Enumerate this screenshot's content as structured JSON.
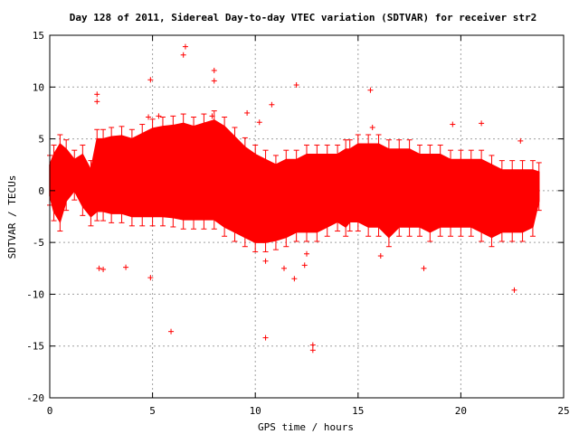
{
  "chart_data": {
    "type": "scatter",
    "title": "Day 128 of 2011, Sidereal Day-to-day VTEC variation (SDTVAR) for receiver str2",
    "xlabel": "GPS time / hours",
    "ylabel": "SDTVAR / TECUs",
    "xlim": [
      0,
      25
    ],
    "ylim": [
      -20,
      15
    ],
    "xticks": [
      0,
      5,
      10,
      15,
      20,
      25
    ],
    "yticks": [
      -20,
      -15,
      -10,
      -5,
      0,
      5,
      10,
      15
    ],
    "grid": true,
    "marker": "plus-with-errorbars",
    "color": "#ff0000",
    "band": [
      [
        0.0,
        -0.5,
        2.5
      ],
      [
        0.2,
        -2.0,
        3.5
      ],
      [
        0.5,
        -3.0,
        4.5
      ],
      [
        0.8,
        -1.0,
        4.0
      ],
      [
        1.2,
        0.0,
        3.0
      ],
      [
        1.6,
        -1.5,
        3.5
      ],
      [
        2.0,
        -2.5,
        2.0
      ],
      [
        2.3,
        -2.0,
        5.0
      ],
      [
        2.6,
        -2.0,
        5.0
      ],
      [
        3.0,
        -2.2,
        5.2
      ],
      [
        3.5,
        -2.2,
        5.3
      ],
      [
        4.0,
        -2.5,
        5.0
      ],
      [
        4.5,
        -2.5,
        5.5
      ],
      [
        5.0,
        -2.5,
        6.0
      ],
      [
        5.5,
        -2.5,
        6.2
      ],
      [
        6.0,
        -2.6,
        6.3
      ],
      [
        6.5,
        -2.8,
        6.5
      ],
      [
        7.0,
        -2.8,
        6.2
      ],
      [
        7.5,
        -2.8,
        6.5
      ],
      [
        8.0,
        -2.8,
        6.8
      ],
      [
        8.5,
        -3.5,
        6.2
      ],
      [
        9.0,
        -4.0,
        5.2
      ],
      [
        9.5,
        -4.5,
        4.2
      ],
      [
        10.0,
        -5.0,
        3.5
      ],
      [
        10.5,
        -5.0,
        3.0
      ],
      [
        11.0,
        -4.8,
        2.5
      ],
      [
        11.5,
        -4.5,
        3.0
      ],
      [
        12.0,
        -4.0,
        3.0
      ],
      [
        12.5,
        -4.0,
        3.5
      ],
      [
        13.0,
        -4.0,
        3.5
      ],
      [
        13.5,
        -3.5,
        3.5
      ],
      [
        14.0,
        -3.0,
        3.5
      ],
      [
        14.4,
        -3.5,
        4.0
      ],
      [
        14.6,
        -3.0,
        4.0
      ],
      [
        15.0,
        -3.0,
        4.5
      ],
      [
        15.5,
        -3.5,
        4.5
      ],
      [
        16.0,
        -3.5,
        4.5
      ],
      [
        16.5,
        -4.5,
        4.0
      ],
      [
        17.0,
        -3.5,
        4.0
      ],
      [
        17.5,
        -3.5,
        4.0
      ],
      [
        18.0,
        -3.5,
        3.5
      ],
      [
        18.5,
        -4.0,
        3.5
      ],
      [
        19.0,
        -3.5,
        3.5
      ],
      [
        19.5,
        -3.5,
        3.0
      ],
      [
        20.0,
        -3.5,
        3.0
      ],
      [
        20.5,
        -3.5,
        3.0
      ],
      [
        21.0,
        -4.0,
        3.0
      ],
      [
        21.5,
        -4.5,
        2.5
      ],
      [
        22.0,
        -4.0,
        2.0
      ],
      [
        22.5,
        -4.0,
        2.0
      ],
      [
        23.0,
        -4.0,
        2.0
      ],
      [
        23.5,
        -3.5,
        2.0
      ],
      [
        23.8,
        -1.0,
        1.8
      ]
    ],
    "outliers": [
      [
        6.6,
        13.9
      ],
      [
        6.5,
        13.1
      ],
      [
        8.0,
        11.6
      ],
      [
        8.0,
        10.6
      ],
      [
        4.9,
        10.7
      ],
      [
        12.0,
        10.2
      ],
      [
        15.6,
        9.7
      ],
      [
        2.3,
        9.3
      ],
      [
        2.3,
        8.6
      ],
      [
        10.8,
        8.3
      ],
      [
        9.6,
        7.5
      ],
      [
        7.9,
        7.2
      ],
      [
        5.3,
        7.2
      ],
      [
        4.8,
        7.1
      ],
      [
        10.2,
        6.6
      ],
      [
        19.6,
        6.4
      ],
      [
        21.0,
        6.5
      ],
      [
        15.7,
        6.1
      ],
      [
        22.9,
        4.8
      ],
      [
        2.4,
        -7.5
      ],
      [
        2.6,
        -7.6
      ],
      [
        3.7,
        -7.4
      ],
      [
        4.9,
        -8.4
      ],
      [
        11.4,
        -7.5
      ],
      [
        10.5,
        -6.8
      ],
      [
        12.4,
        -7.2
      ],
      [
        12.5,
        -6.1
      ],
      [
        11.9,
        -8.5
      ],
      [
        22.6,
        -9.6
      ],
      [
        5.9,
        -13.6
      ],
      [
        10.5,
        -14.2
      ],
      [
        12.8,
        -14.9
      ],
      [
        12.8,
        -15.4
      ],
      [
        16.1,
        -6.3
      ],
      [
        18.2,
        -7.5
      ]
    ]
  }
}
